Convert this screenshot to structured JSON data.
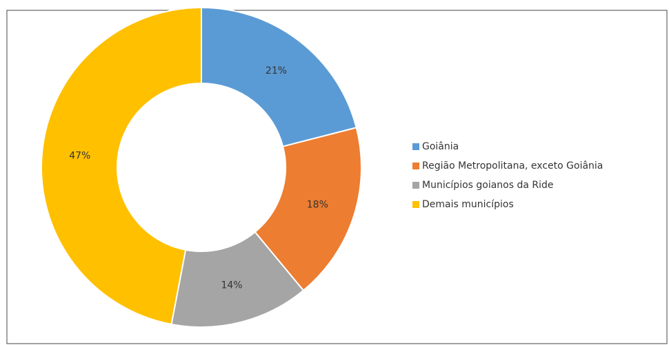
{
  "chart_data": {
    "type": "pie",
    "categories": [
      "Goiânia",
      "Região Metropolitana, exceto Goiânia",
      "Municípios goianos da Ride",
      "Demais municípios"
    ],
    "values": [
      21,
      18,
      14,
      47
    ],
    "value_labels": [
      "21%",
      "18%",
      "14%",
      "47%"
    ],
    "colors": [
      "#5b9bd5",
      "#ed7d31",
      "#a5a5a5",
      "#ffc000"
    ],
    "donut": true,
    "legend": "right"
  }
}
